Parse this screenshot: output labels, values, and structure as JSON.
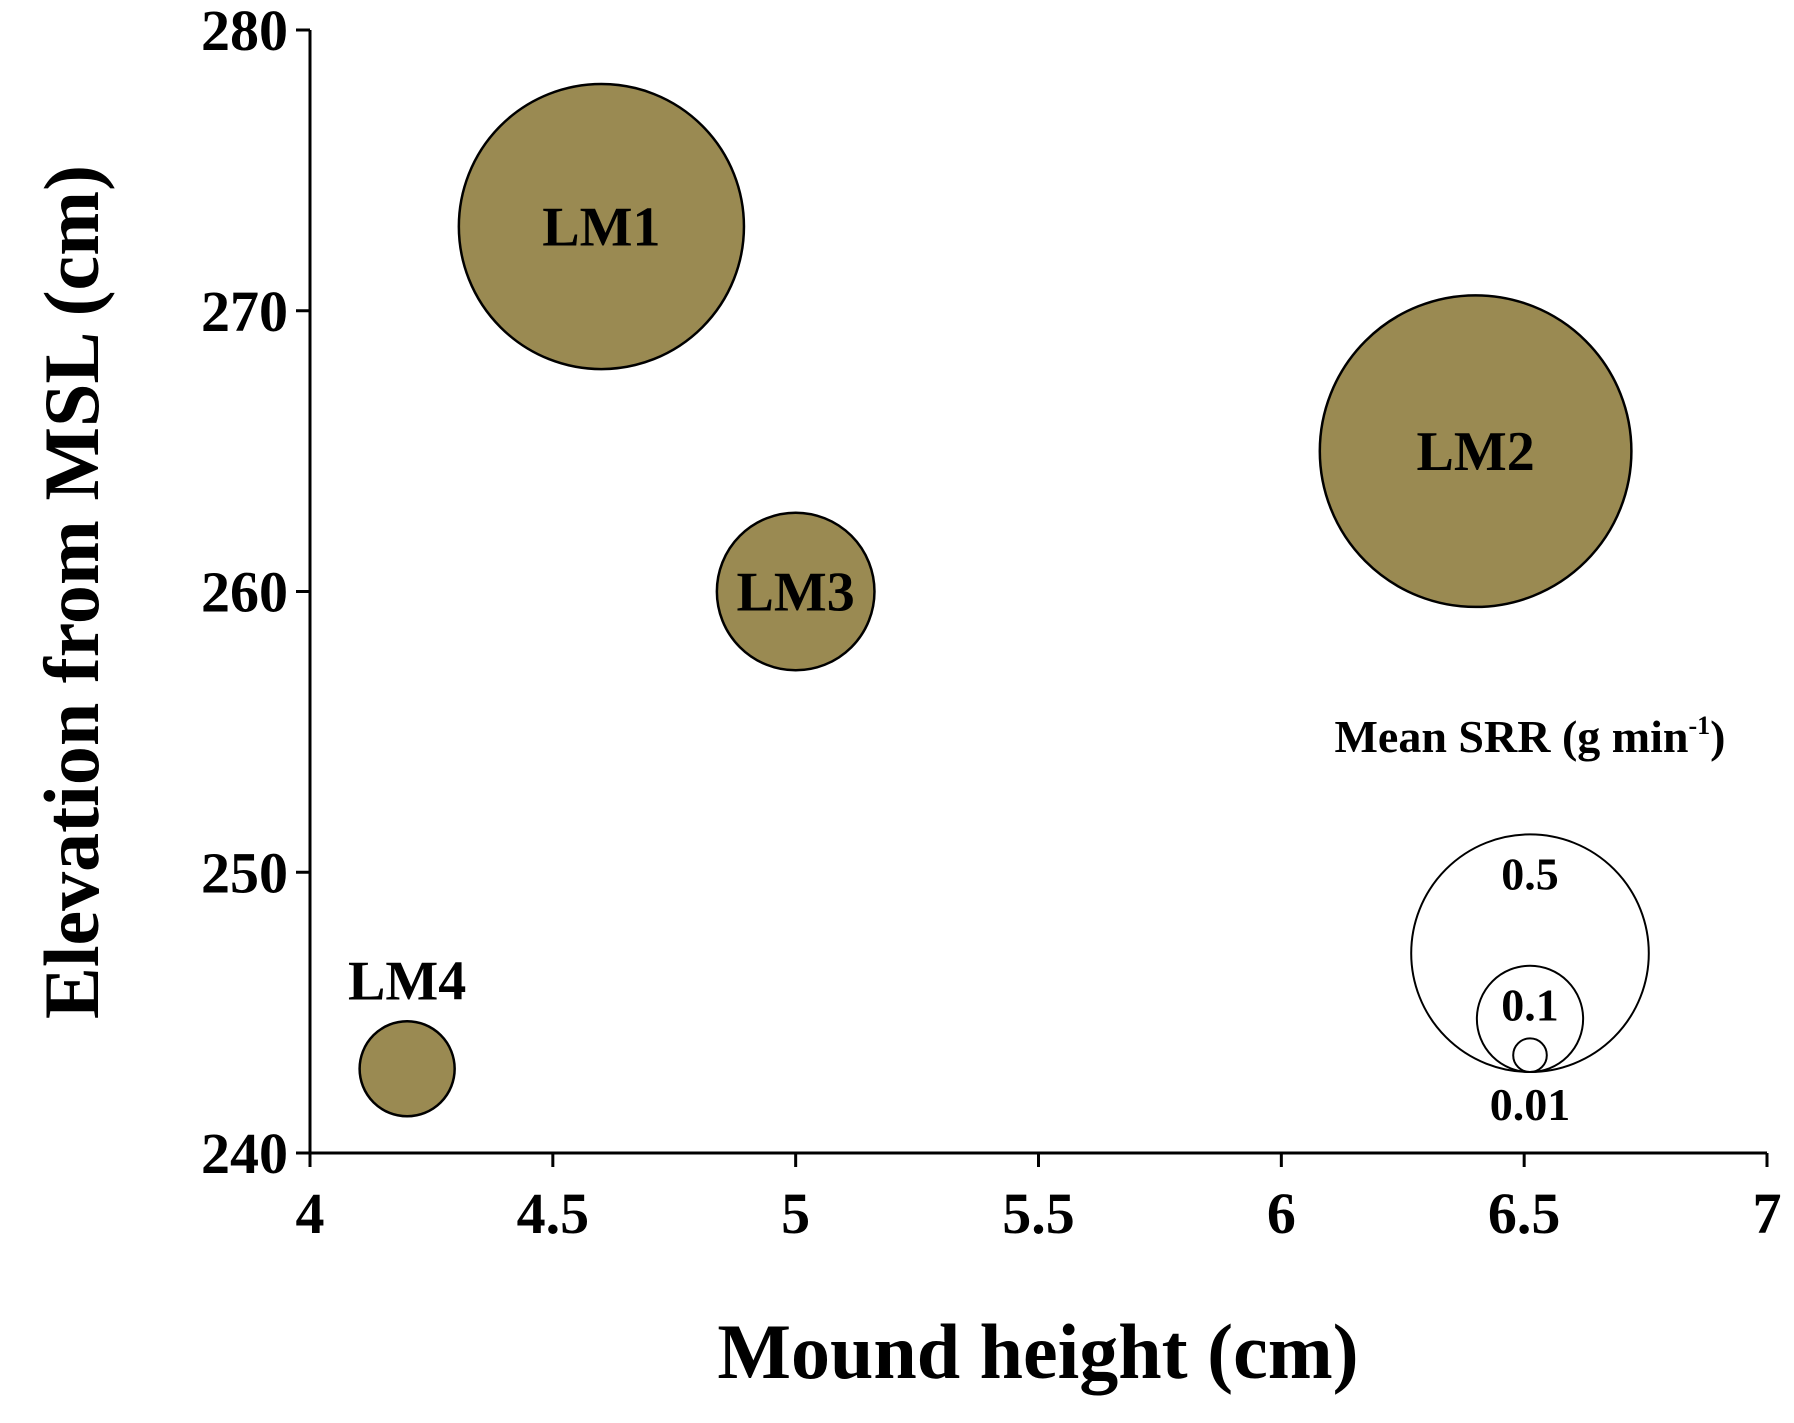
{
  "chart_data": {
    "type": "scatter",
    "subtype": "bubble",
    "title": "",
    "xlabel": "Mound height (cm)",
    "ylabel": "Elevation from MSL (cm)",
    "xlim": [
      4,
      7
    ],
    "ylim": [
      240,
      280
    ],
    "x_ticks": [
      4,
      4.5,
      5,
      5.5,
      6,
      6.5,
      7
    ],
    "x_tick_labels": [
      "4",
      "4.5",
      "5",
      "5.5",
      "6",
      "6.5",
      "7"
    ],
    "y_ticks": [
      240,
      250,
      260,
      270,
      280
    ],
    "y_tick_labels": [
      "240",
      "250",
      "260",
      "270",
      "280"
    ],
    "grid": false,
    "series": [
      {
        "name": "Mean SRR (g min-1)",
        "color": "#9a8a52",
        "edge_color": "#000000",
        "points": [
          {
            "label": "LM1",
            "x": 4.6,
            "y": 273,
            "size": 0.72,
            "label_position": "center"
          },
          {
            "label": "LM2",
            "x": 6.4,
            "y": 265,
            "size": 0.86,
            "label_position": "center"
          },
          {
            "label": "LM3",
            "x": 5.0,
            "y": 260,
            "size": 0.22,
            "label_position": "center"
          },
          {
            "label": "LM4",
            "x": 4.2,
            "y": 243,
            "size": 0.08,
            "label_position": "above"
          }
        ]
      }
    ],
    "legend": {
      "title_main": "Mean SRR (g min",
      "title_sup": "-1",
      "title_end": ")",
      "placement": "bottom-right",
      "entries": [
        {
          "label": "0.5",
          "value": 0.5
        },
        {
          "label": "0.1",
          "value": 0.1
        },
        {
          "label": "0.01",
          "value": 0.01
        }
      ]
    }
  }
}
